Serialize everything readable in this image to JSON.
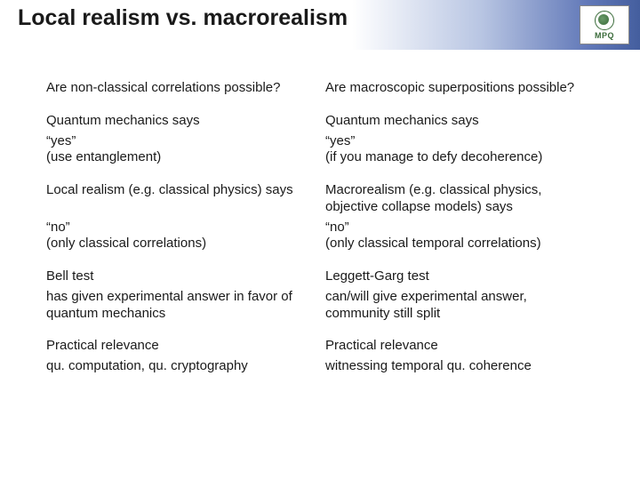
{
  "header": {
    "title": "Local realism vs. macrorealism",
    "logo_text": "MPQ"
  },
  "rows": [
    {
      "left": "Are non-classical correlations possible?",
      "right": "Are macroscopic superpositions possible?"
    },
    {
      "left": "Quantum mechanics says",
      "right": "Quantum mechanics says",
      "tight": "top"
    },
    {
      "left": "“yes”\n(use entanglement)",
      "right": "“yes”\n(if you manage to defy decoherence)",
      "tight": "bot"
    },
    {
      "left": "Local realism (e.g. classical physics) says",
      "right": "Macrorealism (e.g. classical physics, objective collapse models) says",
      "tight": "top"
    },
    {
      "left": "“no”\n(only classical correlations)",
      "right": "“no”\n(only classical temporal correlations)",
      "tight": "bot"
    },
    {
      "left": "Bell test",
      "right": "Leggett-Garg test",
      "tight": "top"
    },
    {
      "left": "has given experimental answer in favor of quantum mechanics",
      "right": "can/will give experimental answer, community still split",
      "tight": "bot"
    },
    {
      "left": "Practical relevance",
      "right": "Practical relevance",
      "tight": "top"
    },
    {
      "left": "qu. computation, qu. cryptography",
      "right": "witnessing temporal qu. coherence",
      "tight": "bot"
    }
  ]
}
